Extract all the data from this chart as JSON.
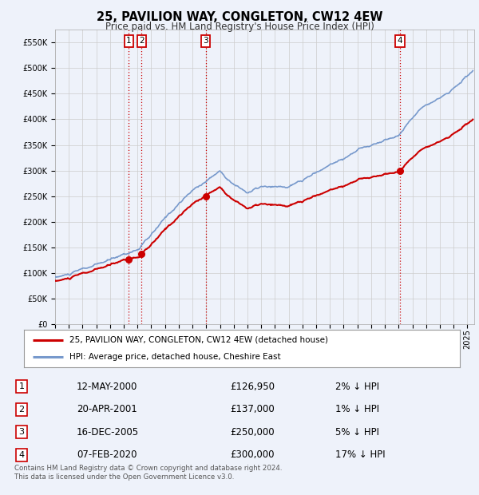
{
  "title": "25, PAVILION WAY, CONGLETON, CW12 4EW",
  "subtitle": "Price paid vs. HM Land Registry's House Price Index (HPI)",
  "legend_line1": "25, PAVILION WAY, CONGLETON, CW12 4EW (detached house)",
  "legend_line2": "HPI: Average price, detached house, Cheshire East",
  "footer1": "Contains HM Land Registry data © Crown copyright and database right 2024.",
  "footer2": "This data is licensed under the Open Government Licence v3.0.",
  "price_color": "#cc0000",
  "hpi_color": "#7799cc",
  "background_color": "#eef2fa",
  "grid_color": "#cccccc",
  "ylim": [
    0,
    575000
  ],
  "yticks": [
    0,
    50000,
    100000,
    150000,
    200000,
    250000,
    300000,
    350000,
    400000,
    450000,
    500000,
    550000
  ],
  "xlim_start": 1995.0,
  "xlim_end": 2025.5,
  "purchases": [
    {
      "num": 1,
      "year_x": 2000.37,
      "price": 126950
    },
    {
      "num": 2,
      "year_x": 2001.3,
      "price": 137000
    },
    {
      "num": 3,
      "year_x": 2005.97,
      "price": 250000
    },
    {
      "num": 4,
      "year_x": 2020.1,
      "price": 300000
    }
  ],
  "vline_color": "#cc0000",
  "hpi_years_raw": [
    1995,
    1996,
    1997,
    1998,
    1999,
    2000,
    2001,
    2002,
    2003,
    2004,
    2005,
    2006,
    2007,
    2008,
    2009,
    2010,
    2011,
    2012,
    2013,
    2014,
    2015,
    2016,
    2017,
    2018,
    2019,
    2020,
    2021,
    2022,
    2023,
    2024,
    2025.4
  ],
  "hpi_vals_raw": [
    92000,
    97000,
    105000,
    112000,
    120000,
    132000,
    142000,
    168000,
    198000,
    228000,
    252000,
    272000,
    292000,
    268000,
    252000,
    262000,
    257000,
    257000,
    267000,
    282000,
    297000,
    312000,
    327000,
    338000,
    348000,
    358000,
    390000,
    425000,
    435000,
    455000,
    490000
  ],
  "table_rows": [
    [
      "1",
      "12-MAY-2000",
      "£126,950",
      "2% ↓ HPI"
    ],
    [
      "2",
      "20-APR-2001",
      "£137,000",
      "1% ↓ HPI"
    ],
    [
      "3",
      "16-DEC-2005",
      "£250,000",
      "5% ↓ HPI"
    ],
    [
      "4",
      "07-FEB-2020",
      "£300,000",
      "17% ↓ HPI"
    ]
  ]
}
